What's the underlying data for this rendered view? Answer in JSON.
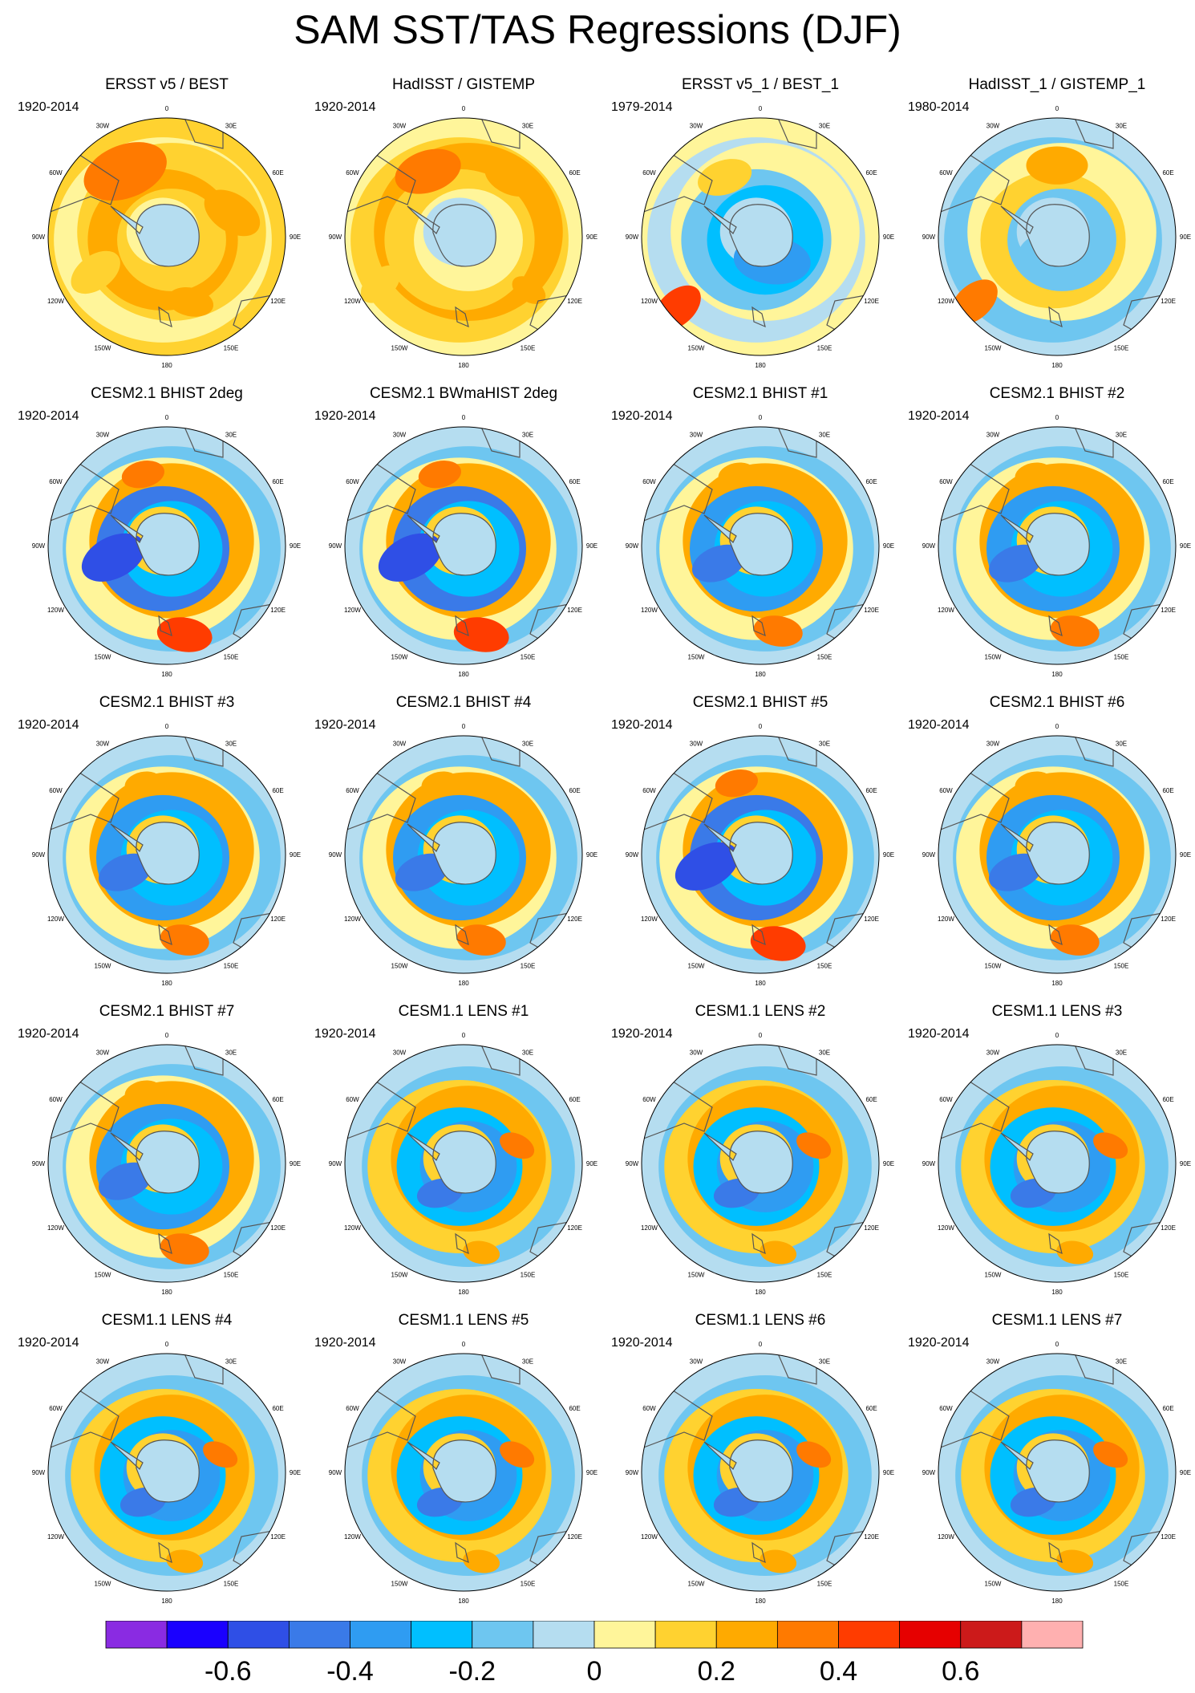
{
  "title": "SAM SST/TAS Regressions (DJF)",
  "longitude_labels": [
    "0",
    "30E",
    "60E",
    "90E",
    "120E",
    "150E",
    "180",
    "150W",
    "120W",
    "90W",
    "60W",
    "30W"
  ],
  "panels": [
    {
      "title": "ERSST v5 / BEST",
      "period": "1920-2014",
      "pattern": "obs_warm"
    },
    {
      "title": "HadISST / GISTEMP",
      "period": "1920-2014",
      "pattern": "obs_warm2"
    },
    {
      "title": "ERSST v5_1 / BEST_1",
      "period": "1979-2014",
      "pattern": "obs_mixed"
    },
    {
      "title": "HadISST_1 / GISTEMP_1",
      "period": "1980-2014",
      "pattern": "obs_mixed2"
    },
    {
      "title": "CESM2.1 BHIST 2deg",
      "period": "1920-2014",
      "pattern": "model_strong"
    },
    {
      "title": "CESM2.1 BWmaHIST 2deg",
      "period": "1920-2014",
      "pattern": "model_strong"
    },
    {
      "title": "CESM2.1 BHIST #1",
      "period": "1920-2014",
      "pattern": "model"
    },
    {
      "title": "CESM2.1 BHIST #2",
      "period": "1920-2014",
      "pattern": "model"
    },
    {
      "title": "CESM2.1 BHIST #3",
      "period": "1920-2014",
      "pattern": "model"
    },
    {
      "title": "CESM2.1 BHIST #4",
      "period": "1920-2014",
      "pattern": "model"
    },
    {
      "title": "CESM2.1 BHIST #5",
      "period": "1920-2014",
      "pattern": "model_strong"
    },
    {
      "title": "CESM2.1 BHIST #6",
      "period": "1920-2014",
      "pattern": "model"
    },
    {
      "title": "CESM2.1 BHIST #7",
      "period": "1920-2014",
      "pattern": "model"
    },
    {
      "title": "CESM1.1 LENS #1",
      "period": "1920-2014",
      "pattern": "lens"
    },
    {
      "title": "CESM1.1 LENS #2",
      "period": "1920-2014",
      "pattern": "lens"
    },
    {
      "title": "CESM1.1 LENS #3",
      "period": "1920-2014",
      "pattern": "lens"
    },
    {
      "title": "CESM1.1 LENS #4",
      "period": "1920-2014",
      "pattern": "lens"
    },
    {
      "title": "CESM1.1 LENS #5",
      "period": "1920-2014",
      "pattern": "lens"
    },
    {
      "title": "CESM1.1 LENS #6",
      "period": "1920-2014",
      "pattern": "lens"
    },
    {
      "title": "CESM1.1 LENS #7",
      "period": "1920-2014",
      "pattern": "lens"
    }
  ],
  "colorbar": {
    "colors": [
      "#8a2be2",
      "#1a00ff",
      "#2f4fe6",
      "#3a7ae8",
      "#2f9cf2",
      "#00bfff",
      "#6ec6f0",
      "#b5ddf0",
      "#fff59a",
      "#ffd230",
      "#ffaa00",
      "#ff7a00",
      "#ff3c00",
      "#e60000",
      "#cc1a1a",
      "#ffb0b0"
    ],
    "tick_labels": [
      "-0.6",
      "-0.4",
      "-0.2",
      "0",
      "0.2",
      "0.4",
      "0.6"
    ],
    "tick_values": [
      -0.6,
      -0.4,
      -0.2,
      0,
      0.2,
      0.4,
      0.6
    ],
    "min": -0.8,
    "max": 0.8
  },
  "colors": {
    "antarctica": "#b5ddf0",
    "coast": "#555555"
  }
}
